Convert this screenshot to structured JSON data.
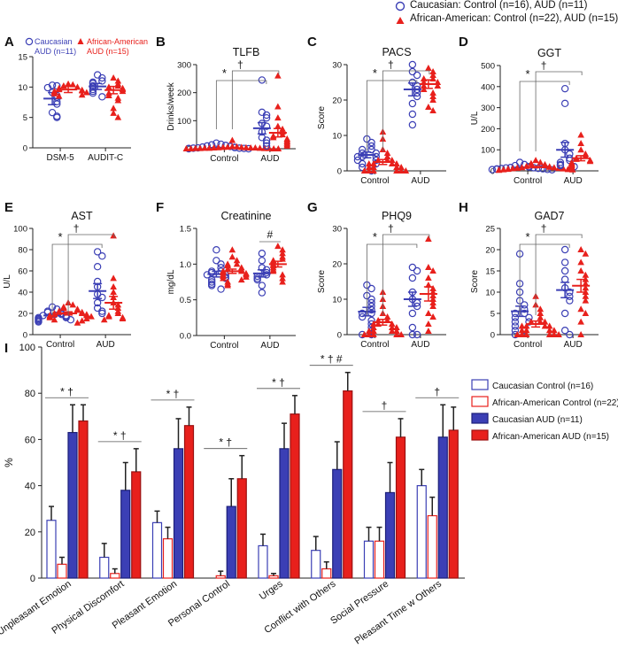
{
  "legend_top": {
    "caucasian": "Caucasian: Control (n=16), AUD (n=11)",
    "african_american": "African-American: Control (n=22), AUD (n=15)"
  },
  "colors": {
    "caucasian": "#3b3fb5",
    "african_american": "#e8201c",
    "axis": "#222222"
  },
  "chart_data": [
    {
      "type": "scatter",
      "id": "A",
      "letter": "A",
      "title": "",
      "ylabel": "",
      "categories": [
        "DSM-5",
        "AUDIT-C"
      ],
      "ylim": [
        0,
        15
      ],
      "yticks": [
        0,
        5,
        10,
        15
      ],
      "legend": {
        "g1": [
          "Caucasian",
          "AUD (n=11)"
        ],
        "g2": [
          "African-American",
          "AUD (n=15)"
        ]
      },
      "series": [
        {
          "name": "Caucasian AUD",
          "group": 1,
          "cat": 0,
          "mean": 8.1,
          "sem": 1.0,
          "values": [
            10.3,
            10.2,
            9.9,
            9.1,
            8.6,
            8.3,
            7.6,
            7.2,
            5.8,
            5.2,
            5.0
          ]
        },
        {
          "name": "African-American AUD",
          "group": 2,
          "cat": 0,
          "mean": 9.6,
          "sem": 0.5,
          "values": [
            10.5,
            10.2,
            10.0,
            9.8,
            9.6,
            9.5,
            9.4,
            9.3,
            9.1,
            8.9,
            8.7,
            8.5,
            10.4,
            9.7,
            9.2
          ]
        },
        {
          "name": "Caucasian AUD",
          "group": 1,
          "cat": 1,
          "mean": 10.1,
          "sem": 0.5,
          "values": [
            12.0,
            11.0,
            10.8,
            10.6,
            10.2,
            10.0,
            9.6,
            9.3,
            9.0,
            8.4,
            11.5
          ]
        },
        {
          "name": "African-American AUD",
          "group": 2,
          "cat": 1,
          "mean": 9.5,
          "sem": 0.6,
          "values": [
            11.5,
            11.0,
            10.5,
            10.2,
            10.0,
            9.8,
            9.6,
            9.3,
            9.0,
            8.6,
            8.2,
            7.8,
            6.5,
            5.7,
            5.0
          ]
        }
      ]
    },
    {
      "type": "scatter",
      "id": "B",
      "letter": "B",
      "title": "TLFB",
      "ylabel": "Drinks/week",
      "categories": [
        "Control",
        "AUD"
      ],
      "ylim": [
        0,
        300
      ],
      "yticks": [
        0,
        100,
        200,
        300
      ],
      "annotations": {
        "star": "*",
        "dagger": "†",
        "hash": ""
      },
      "series": [
        {
          "group": 1,
          "cat": 0,
          "mean": 3,
          "sem": 1.5,
          "values": [
            0,
            0,
            1,
            1,
            2,
            2,
            3,
            4,
            5,
            6,
            8,
            10,
            12,
            14,
            16,
            20
          ]
        },
        {
          "group": 2,
          "cat": 0,
          "mean": 2,
          "sem": 1.0,
          "values": [
            0,
            0,
            0,
            0,
            1,
            1,
            1,
            1,
            2,
            2,
            2,
            3,
            3,
            3,
            4,
            4,
            5,
            5,
            6,
            7,
            8,
            30
          ]
        },
        {
          "group": 1,
          "cat": 1,
          "mean": 73,
          "sem": 20,
          "values": [
            245,
            130,
            120,
            110,
            90,
            80,
            60,
            40,
            30,
            20,
            10
          ]
        },
        {
          "group": 2,
          "cat": 1,
          "mean": 57,
          "sem": 15,
          "values": [
            260,
            150,
            110,
            80,
            70,
            60,
            50,
            45,
            40,
            35,
            30,
            25,
            20,
            15,
            10
          ]
        }
      ]
    },
    {
      "type": "scatter",
      "id": "C",
      "letter": "C",
      "title": "PACS",
      "ylabel": "Score",
      "categories": [
        "Control",
        "AUD"
      ],
      "ylim": [
        0,
        30
      ],
      "yticks": [
        0,
        10,
        20,
        30
      ],
      "annotations": {
        "star": "*",
        "dagger": "†",
        "hash": ""
      },
      "series": [
        {
          "group": 1,
          "cat": 0,
          "mean": 4.5,
          "sem": 0.8,
          "values": [
            9,
            8,
            7,
            6,
            6,
            5,
            5,
            4,
            4,
            4,
            3,
            3,
            2,
            2,
            1,
            0
          ]
        },
        {
          "group": 2,
          "cat": 0,
          "mean": 2.5,
          "sem": 0.7,
          "values": [
            11,
            9,
            6,
            5,
            4,
            3,
            3,
            3,
            2,
            2,
            2,
            2,
            1,
            1,
            1,
            1,
            0,
            0,
            0,
            0,
            0,
            0
          ]
        },
        {
          "group": 1,
          "cat": 1,
          "mean": 23,
          "sem": 1.8,
          "values": [
            30,
            28,
            27,
            25,
            24,
            23,
            22,
            21,
            19,
            16,
            13
          ]
        },
        {
          "group": 2,
          "cat": 1,
          "mean": 24.5,
          "sem": 1.2,
          "values": [
            29,
            28,
            27,
            26,
            26,
            25,
            25,
            24,
            24,
            23,
            22,
            21,
            20,
            18,
            17
          ]
        }
      ]
    },
    {
      "type": "scatter",
      "id": "D",
      "letter": "D",
      "title": "GGT",
      "ylabel": "U/L",
      "categories": [
        "Control",
        "AUD"
      ],
      "ylim": [
        0,
        500
      ],
      "yticks": [
        0,
        100,
        200,
        300,
        400,
        500
      ],
      "annotations": {
        "star": "*",
        "dagger": "†",
        "hash": ""
      },
      "series": [
        {
          "group": 1,
          "cat": 0,
          "mean": 15,
          "sem": 3,
          "values": [
            40,
            30,
            25,
            20,
            18,
            16,
            15,
            14,
            12,
            11,
            10,
            9,
            8,
            7,
            6,
            5
          ]
        },
        {
          "group": 2,
          "cat": 0,
          "mean": 18,
          "sem": 3,
          "values": [
            50,
            40,
            35,
            30,
            25,
            22,
            20,
            18,
            16,
            15,
            14,
            13,
            12,
            11,
            10,
            9,
            8,
            7,
            6,
            5,
            4,
            3
          ]
        },
        {
          "group": 1,
          "cat": 1,
          "mean": 100,
          "sem": 35,
          "values": [
            390,
            320,
            130,
            100,
            80,
            60,
            50,
            40,
            30,
            25,
            20
          ]
        },
        {
          "group": 2,
          "cat": 1,
          "mean": 60,
          "sem": 12,
          "values": [
            170,
            130,
            100,
            80,
            70,
            60,
            55,
            50,
            45,
            40,
            35,
            30,
            25,
            20,
            15
          ]
        }
      ]
    },
    {
      "type": "scatter",
      "id": "E",
      "letter": "E",
      "title": "AST",
      "ylabel": "U/L",
      "categories": [
        "Control",
        "AUD"
      ],
      "ylim": [
        0,
        100
      ],
      "yticks": [
        0,
        20,
        40,
        60,
        80,
        100
      ],
      "annotations": {
        "star": "*",
        "dagger": "†",
        "hash": ""
      },
      "series": [
        {
          "group": 1,
          "cat": 0,
          "mean": 18,
          "sem": 1.5,
          "values": [
            26,
            24,
            22,
            21,
            20,
            19,
            18,
            18,
            17,
            16,
            16,
            15,
            14,
            14,
            13,
            12
          ]
        },
        {
          "group": 2,
          "cat": 0,
          "mean": 20,
          "sem": 1.5,
          "values": [
            30,
            28,
            26,
            25,
            24,
            23,
            22,
            21,
            21,
            20,
            20,
            19,
            19,
            18,
            18,
            17,
            17,
            16,
            15,
            14,
            13,
            11
          ]
        },
        {
          "group": 1,
          "cat": 1,
          "mean": 41,
          "sem": 7,
          "values": [
            78,
            74,
            64,
            50,
            45,
            38,
            35,
            30,
            25,
            22,
            20
          ]
        },
        {
          "group": 2,
          "cat": 1,
          "mean": 30,
          "sem": 6,
          "values": [
            93,
            53,
            45,
            40,
            35,
            30,
            28,
            25,
            22,
            20,
            18,
            17,
            16,
            15,
            14
          ]
        }
      ]
    },
    {
      "type": "scatter",
      "id": "F",
      "letter": "F",
      "title": "Creatinine",
      "ylabel": "mg/dL",
      "categories": [
        "Control",
        "AUD"
      ],
      "ylim": [
        0,
        1.5
      ],
      "yticks": [
        0,
        0.5,
        1.0,
        1.5
      ],
      "annotations": {
        "star": "",
        "dagger": "",
        "hash": "#"
      },
      "series": [
        {
          "group": 1,
          "cat": 0,
          "mean": 0.86,
          "sem": 0.04,
          "values": [
            1.2,
            1.05,
            1.0,
            0.95,
            0.9,
            0.9,
            0.88,
            0.85,
            0.85,
            0.82,
            0.8,
            0.78,
            0.75,
            0.72,
            0.7,
            0.65
          ]
        },
        {
          "group": 2,
          "cat": 0,
          "mean": 0.9,
          "sem": 0.03,
          "values": [
            1.2,
            1.1,
            1.05,
            1.0,
            1.0,
            0.98,
            0.95,
            0.93,
            0.92,
            0.9,
            0.9,
            0.88,
            0.87,
            0.85,
            0.85,
            0.83,
            0.82,
            0.8,
            0.78,
            0.75,
            0.72,
            0.7
          ]
        },
        {
          "group": 1,
          "cat": 1,
          "mean": 0.87,
          "sem": 0.05,
          "values": [
            1.15,
            1.05,
            0.95,
            0.92,
            0.88,
            0.85,
            0.83,
            0.8,
            0.78,
            0.7,
            0.6
          ]
        },
        {
          "group": 2,
          "cat": 1,
          "mean": 1.0,
          "sem": 0.04,
          "values": [
            1.25,
            1.2,
            1.15,
            1.1,
            1.07,
            1.05,
            1.03,
            1.0,
            0.98,
            0.95,
            0.92,
            0.9,
            0.85,
            0.8,
            0.75
          ]
        }
      ]
    },
    {
      "type": "scatter",
      "id": "G",
      "letter": "G",
      "title": "PHQ9",
      "ylabel": "Score",
      "categories": [
        "Control",
        "AUD"
      ],
      "ylim": [
        0,
        30
      ],
      "yticks": [
        0,
        10,
        20,
        30
      ],
      "annotations": {
        "star": "*",
        "dagger": "†",
        "hash": ""
      },
      "series": [
        {
          "group": 1,
          "cat": 0,
          "mean": 6.5,
          "sem": 1.2,
          "values": [
            14,
            13,
            11,
            10,
            9,
            8,
            7,
            6,
            6,
            5,
            4,
            3,
            2,
            1,
            0,
            0
          ]
        },
        {
          "group": 2,
          "cat": 0,
          "mean": 3.5,
          "sem": 0.8,
          "values": [
            12,
            10,
            8,
            6,
            5,
            4,
            4,
            3,
            3,
            3,
            2,
            2,
            2,
            1,
            1,
            1,
            1,
            0,
            0,
            0,
            0,
            0
          ]
        },
        {
          "group": 1,
          "cat": 1,
          "mean": 10,
          "sem": 2,
          "values": [
            19,
            18,
            16,
            12,
            10,
            9,
            8,
            6,
            2,
            0,
            0
          ]
        },
        {
          "group": 2,
          "cat": 1,
          "mean": 11.5,
          "sem": 2,
          "values": [
            27,
            19,
            18,
            16,
            14,
            13,
            12,
            11,
            10,
            9,
            8,
            6,
            5,
            3,
            1
          ]
        }
      ]
    },
    {
      "type": "scatter",
      "id": "H",
      "letter": "H",
      "title": "GAD7",
      "ylabel": "Score",
      "categories": [
        "Control",
        "AUD"
      ],
      "ylim": [
        0,
        25
      ],
      "yticks": [
        0,
        5,
        10,
        15,
        20,
        25
      ],
      "annotations": {
        "star": "*",
        "dagger": "†",
        "hash": ""
      },
      "series": [
        {
          "group": 1,
          "cat": 0,
          "mean": 5.5,
          "sem": 1.2,
          "values": [
            19,
            12,
            10,
            8,
            7,
            6,
            5,
            5,
            4,
            4,
            3,
            3,
            2,
            1,
            1,
            0
          ]
        },
        {
          "group": 2,
          "cat": 0,
          "mean": 2.5,
          "sem": 0.7,
          "values": [
            9,
            7,
            6,
            5,
            4,
            3,
            3,
            3,
            2,
            2,
            2,
            2,
            1,
            1,
            1,
            1,
            0,
            0,
            0,
            0,
            0,
            0
          ]
        },
        {
          "group": 1,
          "cat": 1,
          "mean": 10.5,
          "sem": 1.8,
          "values": [
            20,
            17,
            15,
            13,
            11,
            10,
            9,
            8,
            5,
            1,
            0
          ]
        },
        {
          "group": 2,
          "cat": 1,
          "mean": 11.5,
          "sem": 1.5,
          "values": [
            20,
            19,
            17,
            15,
            14,
            13,
            12,
            11,
            10,
            9,
            8,
            6,
            5,
            3,
            0
          ]
        }
      ]
    },
    {
      "type": "bar",
      "id": "I",
      "letter": "I",
      "title": "",
      "ylabel": "%",
      "ylim": [
        0,
        100
      ],
      "yticks": [
        0,
        20,
        40,
        60,
        80,
        100
      ],
      "categories": [
        "Unpleasant Emotion",
        "Physical Discomfort",
        "Pleasant Emotion",
        "Personal Control",
        "Urges",
        "Conflict with Others",
        "Social Pressure",
        "Pleasant Time w Others"
      ],
      "annotations": [
        "* †",
        "* †",
        "* †",
        "* †",
        "* †",
        "* † #",
        "†",
        "†"
      ],
      "series": [
        {
          "name": "Caucasian Control (n=16)",
          "style": "open-blue",
          "values": [
            25,
            9,
            24,
            0,
            14,
            12,
            16,
            40
          ],
          "errors": [
            6,
            6,
            5,
            0,
            5,
            6,
            6,
            7
          ]
        },
        {
          "name": "African-American Control (n=22)",
          "style": "open-red",
          "values": [
            6,
            2,
            17,
            1,
            1,
            4,
            16,
            27
          ],
          "errors": [
            3,
            2,
            5,
            2,
            1,
            3,
            6,
            8
          ]
        },
        {
          "name": "Caucasian AUD (n=11)",
          "style": "filled-blue",
          "values": [
            63,
            38,
            56,
            31,
            56,
            47,
            37,
            61
          ],
          "errors": [
            12,
            12,
            13,
            12,
            11,
            12,
            13,
            14
          ]
        },
        {
          "name": "African-American AUD (n=15)",
          "style": "filled-red",
          "values": [
            68,
            46,
            66,
            43,
            71,
            81,
            61,
            64
          ],
          "errors": [
            7,
            10,
            8,
            10,
            8,
            8,
            8,
            10
          ]
        }
      ]
    }
  ]
}
